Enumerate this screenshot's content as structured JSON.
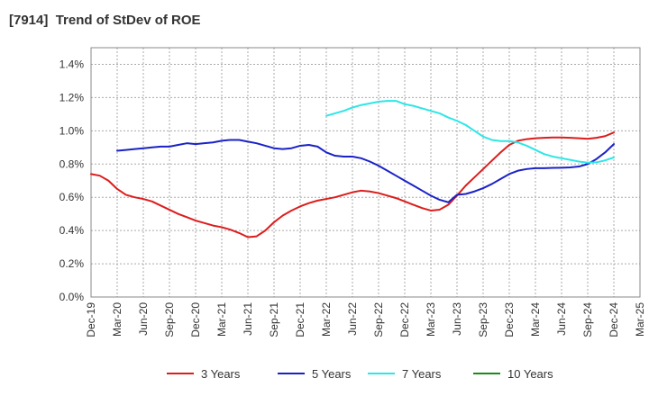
{
  "title": "[7914]  Trend of StDev of ROE",
  "chart_data": {
    "type": "line",
    "title": "[7914]  Trend of StDev of ROE",
    "x_ticks": [
      "Dec-19",
      "Mar-20",
      "Jun-20",
      "Sep-20",
      "Dec-20",
      "Mar-21",
      "Jun-21",
      "Sep-21",
      "Dec-21",
      "Mar-22",
      "Jun-22",
      "Sep-22",
      "Dec-22",
      "Mar-23",
      "Jun-23",
      "Sep-23",
      "Dec-23",
      "Mar-24",
      "Jun-24",
      "Sep-24",
      "Dec-24",
      "Mar-25"
    ],
    "y_ticks": [
      "0.0%",
      "0.2%",
      "0.4%",
      "0.6%",
      "0.8%",
      "1.0%",
      "1.2%",
      "1.4%"
    ],
    "ylim": [
      0,
      1.5
    ],
    "y_unit": "%",
    "grid": true,
    "legend_position": "bottom",
    "series": [
      {
        "name": "3 Years",
        "color": "#dd1c1c",
        "x": [
          "2019-12",
          "2020-01",
          "2020-02",
          "2020-03",
          "2020-04",
          "2020-05",
          "2020-06",
          "2020-07",
          "2020-08",
          "2020-09",
          "2020-10",
          "2020-11",
          "2020-12",
          "2021-01",
          "2021-02",
          "2021-03",
          "2021-04",
          "2021-05",
          "2021-06",
          "2021-07",
          "2021-08",
          "2021-09",
          "2021-10",
          "2021-11",
          "2021-12",
          "2022-01",
          "2022-02",
          "2022-03",
          "2022-04",
          "2022-05",
          "2022-06",
          "2022-07",
          "2022-08",
          "2022-09",
          "2022-10",
          "2022-11",
          "2022-12",
          "2023-01",
          "2023-02",
          "2023-03",
          "2023-04",
          "2023-05",
          "2023-06",
          "2023-07",
          "2023-08",
          "2023-09",
          "2023-10",
          "2023-11",
          "2023-12",
          "2024-01",
          "2024-02",
          "2024-03",
          "2024-04",
          "2024-05",
          "2024-06",
          "2024-07",
          "2024-08",
          "2024-09",
          "2024-10",
          "2024-11",
          "2024-12"
        ],
        "values": [
          0.74,
          0.73,
          0.7,
          0.65,
          0.615,
          0.6,
          0.59,
          0.575,
          0.55,
          0.525,
          0.5,
          0.48,
          0.46,
          0.445,
          0.43,
          0.42,
          0.405,
          0.385,
          0.36,
          0.365,
          0.4,
          0.45,
          0.49,
          0.52,
          0.545,
          0.565,
          0.58,
          0.59,
          0.6,
          0.615,
          0.63,
          0.64,
          0.635,
          0.625,
          0.61,
          0.595,
          0.575,
          0.555,
          0.535,
          0.52,
          0.525,
          0.555,
          0.61,
          0.67,
          0.72,
          0.77,
          0.82,
          0.87,
          0.915,
          0.94,
          0.95,
          0.955,
          0.958,
          0.96,
          0.96,
          0.958,
          0.955,
          0.952,
          0.958,
          0.968,
          0.99
        ]
      },
      {
        "name": "5 Years",
        "color": "#1a22c6",
        "x": [
          "2020-03",
          "2020-04",
          "2020-05",
          "2020-06",
          "2020-07",
          "2020-08",
          "2020-09",
          "2020-10",
          "2020-11",
          "2020-12",
          "2021-01",
          "2021-02",
          "2021-03",
          "2021-04",
          "2021-05",
          "2021-06",
          "2021-07",
          "2021-08",
          "2021-09",
          "2021-10",
          "2021-11",
          "2021-12",
          "2022-01",
          "2022-02",
          "2022-03",
          "2022-04",
          "2022-05",
          "2022-06",
          "2022-07",
          "2022-08",
          "2022-09",
          "2022-10",
          "2022-11",
          "2022-12",
          "2023-01",
          "2023-02",
          "2023-03",
          "2023-04",
          "2023-05",
          "2023-06",
          "2023-07",
          "2023-08",
          "2023-09",
          "2023-10",
          "2023-11",
          "2023-12",
          "2024-01",
          "2024-02",
          "2024-03",
          "2024-04",
          "2024-05",
          "2024-06",
          "2024-07",
          "2024-08",
          "2024-09",
          "2024-10",
          "2024-11",
          "2024-12"
        ],
        "values": [
          0.88,
          0.885,
          0.89,
          0.895,
          0.9,
          0.905,
          0.905,
          0.915,
          0.925,
          0.92,
          0.925,
          0.93,
          0.94,
          0.945,
          0.945,
          0.935,
          0.925,
          0.91,
          0.895,
          0.89,
          0.895,
          0.91,
          0.915,
          0.905,
          0.87,
          0.85,
          0.845,
          0.845,
          0.835,
          0.815,
          0.79,
          0.76,
          0.73,
          0.7,
          0.67,
          0.64,
          0.61,
          0.585,
          0.57,
          0.615,
          0.62,
          0.635,
          0.655,
          0.68,
          0.71,
          0.74,
          0.76,
          0.77,
          0.775,
          0.775,
          0.777,
          0.778,
          0.78,
          0.785,
          0.8,
          0.83,
          0.87,
          0.92
        ]
      },
      {
        "name": "7 Years",
        "color": "#2ee6e6",
        "x": [
          "2022-03",
          "2022-04",
          "2022-05",
          "2022-06",
          "2022-07",
          "2022-08",
          "2022-09",
          "2022-10",
          "2022-11",
          "2022-12",
          "2023-01",
          "2023-02",
          "2023-03",
          "2023-04",
          "2023-05",
          "2023-06",
          "2023-07",
          "2023-08",
          "2023-09",
          "2023-10",
          "2023-11",
          "2023-12",
          "2024-01",
          "2024-02",
          "2024-03",
          "2024-04",
          "2024-05",
          "2024-06",
          "2024-07",
          "2024-08",
          "2024-09",
          "2024-10",
          "2024-11",
          "2024-12"
        ],
        "values": [
          1.09,
          1.105,
          1.12,
          1.14,
          1.155,
          1.165,
          1.175,
          1.18,
          1.18,
          1.16,
          1.15,
          1.135,
          1.12,
          1.105,
          1.08,
          1.06,
          1.035,
          1.0,
          0.965,
          0.945,
          0.938,
          0.938,
          0.93,
          0.91,
          0.885,
          0.86,
          0.845,
          0.835,
          0.825,
          0.815,
          0.808,
          0.81,
          0.822,
          0.84
        ]
      },
      {
        "name": "10 Years",
        "color": "#1b8a1b",
        "x": [],
        "values": []
      }
    ]
  }
}
